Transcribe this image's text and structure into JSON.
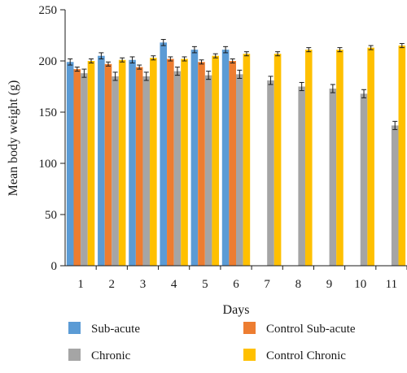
{
  "chart_data": {
    "type": "bar",
    "xlabel": "Days",
    "ylabel": "Mean body weight (g)",
    "ylim": [
      0,
      250
    ],
    "yticks": [
      0,
      50,
      100,
      150,
      200,
      250
    ],
    "categories": [
      "1",
      "2",
      "3",
      "4",
      "5",
      "6",
      "7",
      "8",
      "9",
      "10",
      "11"
    ],
    "series": [
      {
        "name": "Sub-acute",
        "color": "#5b9bd5",
        "values": [
          199,
          205,
          201,
          218,
          211,
          211,
          null,
          null,
          null,
          null,
          null
        ],
        "errors": [
          3,
          3,
          3,
          3,
          3,
          3,
          null,
          null,
          null,
          null,
          null
        ]
      },
      {
        "name": "Control Sub-acute",
        "color": "#ed7d31",
        "values": [
          192,
          197,
          194,
          202,
          199,
          200,
          null,
          null,
          null,
          null,
          null
        ],
        "errors": [
          2,
          2,
          2,
          2,
          2,
          2,
          null,
          null,
          null,
          null,
          null
        ]
      },
      {
        "name": "Chronic",
        "color": "#a5a5a5",
        "values": [
          188,
          185,
          185,
          190,
          186,
          187,
          181,
          175,
          173,
          168,
          137
        ],
        "errors": [
          4,
          4,
          4,
          4,
          4,
          4,
          4,
          4,
          4,
          4,
          4
        ]
      },
      {
        "name": "Control Chronic",
        "color": "#ffc000",
        "values": [
          200,
          201,
          203,
          202,
          205,
          207,
          207,
          211,
          211,
          213,
          215
        ],
        "errors": [
          2,
          2,
          2,
          2,
          2,
          2,
          2,
          2,
          2,
          2,
          2
        ]
      }
    ],
    "grid": false,
    "legend_position": "bottom"
  }
}
